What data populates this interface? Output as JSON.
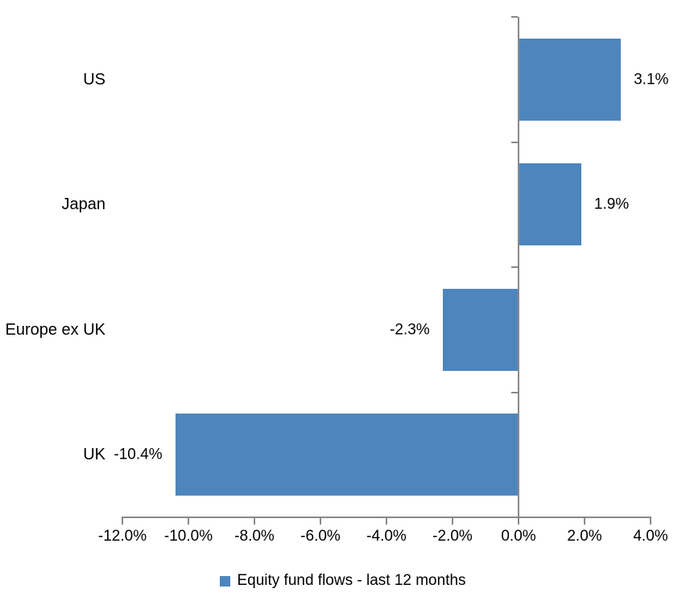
{
  "chart_data": {
    "type": "bar",
    "orientation": "horizontal",
    "title": "",
    "categories": [
      "US",
      "Japan",
      "Europe ex UK",
      "UK"
    ],
    "series": [
      {
        "name": "Equity fund flows - last 12 months",
        "values": [
          3.1,
          1.9,
          -2.3,
          -10.4
        ]
      }
    ],
    "value_labels": [
      "3.1%",
      "1.9%",
      "-2.3%",
      "-10.4%"
    ],
    "x_ticks": [
      "-12.0%",
      "-10.0%",
      "-8.0%",
      "-6.0%",
      "-4.0%",
      "-2.0%",
      "0.0%",
      "2.0%",
      "4.0%"
    ],
    "xlim": [
      -12,
      4
    ],
    "grid": false,
    "legend": {
      "position": "bottom",
      "entries": [
        "Equity fund flows - last 12 months"
      ]
    },
    "colors": {
      "bar": "#4D86BD",
      "axis": "#898989",
      "text": "#000000",
      "background": "#FFFFFF"
    }
  }
}
